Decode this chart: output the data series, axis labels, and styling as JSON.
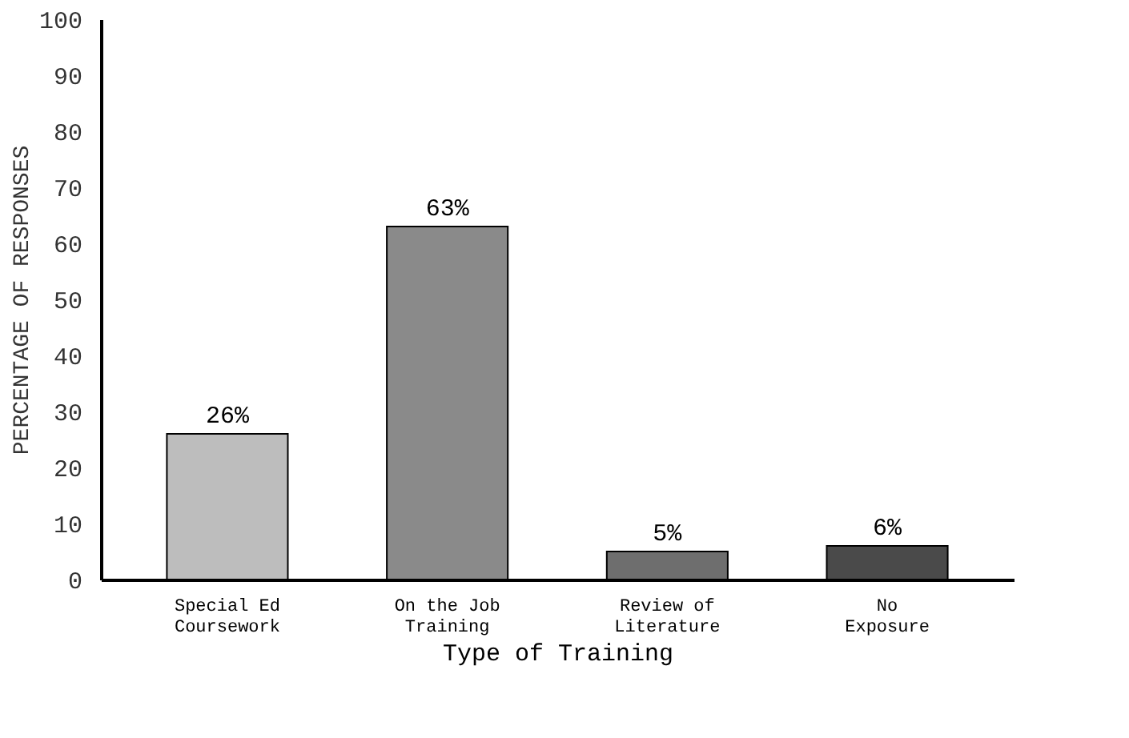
{
  "chart_data": {
    "type": "bar",
    "xlabel": "Type of Training",
    "ylabel": "PERCENTAGE OF RESPONSES",
    "categories": [
      "Special Ed\nCoursework",
      "On the Job\nTraining",
      "Review of\nLiterature",
      "No\nExposure"
    ],
    "values": [
      26,
      63,
      5,
      6
    ],
    "value_labels": [
      "26%",
      "63%",
      "5%",
      "6%"
    ],
    "colors": [
      "#bdbdbd",
      "#8a8a8a",
      "#6e6e6e",
      "#4a4a4a"
    ],
    "ylim": [
      0,
      100
    ],
    "yticks": [
      0,
      10,
      20,
      30,
      40,
      50,
      60,
      70,
      80,
      90,
      100
    ],
    "grid": false
  }
}
